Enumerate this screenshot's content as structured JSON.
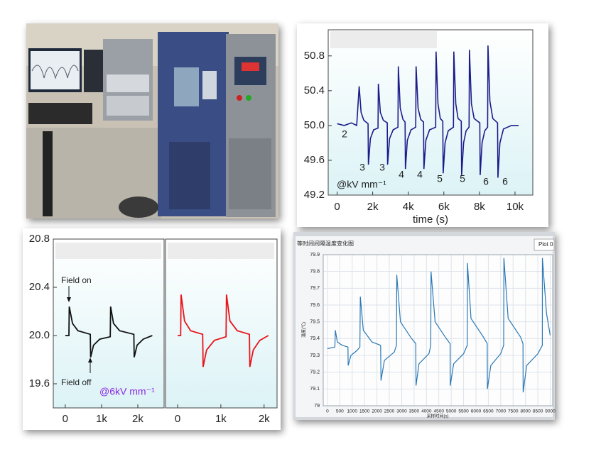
{
  "chart_data": [
    {
      "type": "line",
      "x_label": "time (s)",
      "x": [
        0,
        400,
        800,
        1100,
        1240,
        1350,
        1500,
        1740,
        1760,
        1870,
        2050,
        2300,
        2320,
        2430,
        2600,
        2820,
        2840,
        2950,
        3150,
        3420,
        3440,
        3550,
        3700,
        3820,
        3840,
        3950,
        4150,
        4420,
        4440,
        4550,
        4700,
        4860,
        4880,
        4990,
        5200,
        5540,
        5560,
        5670,
        5800,
        5940,
        5960,
        6070,
        6250,
        6540,
        6560,
        6670,
        6800,
        6980,
        7000,
        7110,
        7250,
        7420,
        7440,
        7550,
        7700,
        8020,
        8040,
        8150,
        8300,
        8460,
        8480,
        8590,
        8750,
        9020,
        9040,
        9150,
        9350,
        9800,
        10200
      ],
      "values": [
        50.02,
        50.0,
        50.03,
        50.0,
        50.45,
        50.15,
        50.06,
        50.02,
        49.55,
        49.85,
        49.95,
        49.97,
        50.48,
        50.15,
        50.06,
        50.03,
        49.55,
        49.85,
        49.95,
        49.98,
        50.68,
        50.2,
        50.07,
        50.04,
        49.5,
        49.83,
        49.95,
        49.98,
        50.68,
        50.2,
        50.07,
        50.04,
        49.5,
        49.83,
        49.95,
        49.98,
        50.85,
        50.25,
        50.08,
        50.05,
        49.45,
        49.8,
        49.94,
        49.98,
        50.85,
        50.25,
        50.08,
        50.05,
        49.43,
        49.8,
        49.94,
        49.98,
        50.87,
        50.25,
        50.08,
        50.03,
        49.43,
        49.8,
        49.94,
        49.98,
        50.92,
        50.28,
        50.08,
        50.03,
        49.4,
        49.8,
        49.96,
        50.0,
        50.0
      ],
      "color": "#1c1c8a",
      "xlim": [
        -500,
        11000
      ],
      "ylim": [
        49.2,
        51.1
      ],
      "xticks": [
        0,
        {
          "value": 2000,
          "label": "2k"
        },
        {
          "value": 4000,
          "label": "4k"
        },
        {
          "value": 6000,
          "label": "6k"
        },
        {
          "value": 8000,
          "label": "8k"
        },
        {
          "value": 10000,
          "label": "10k"
        }
      ],
      "yticks": [
        49.2,
        49.6,
        {
          "value": 50,
          "label": "50.0"
        },
        50.4,
        50.8
      ],
      "annotations": [
        "2",
        "3",
        "3",
        "4",
        "4",
        "5",
        "5",
        "6",
        "6",
        "@kV mm⁻¹"
      ]
    },
    {
      "type": "line",
      "x": [
        0,
        100,
        110,
        200,
        350,
        690,
        700,
        780,
        950,
        1240,
        1250,
        1330,
        1500,
        1890,
        1900,
        1980,
        2150,
        2400
      ],
      "values": [
        20.0,
        20.0,
        20.24,
        20.1,
        20.04,
        20.01,
        19.82,
        19.92,
        19.97,
        19.99,
        20.24,
        20.1,
        20.04,
        20.01,
        19.82,
        19.92,
        19.97,
        20.0
      ],
      "color": "#111111",
      "xlim": [
        -330,
        2725
      ],
      "ylim": [
        19.4,
        20.8
      ],
      "xticks": [
        0,
        {
          "value": 1000,
          "label": "1k"
        },
        {
          "value": 2000,
          "label": "2k"
        }
      ],
      "yticks": [
        19.6,
        {
          "value": 20,
          "label": "20.0"
        },
        20.4,
        20.8
      ],
      "annotations": [
        "Field on",
        "Field off",
        "@6kV mm⁻¹"
      ]
    },
    {
      "type": "line",
      "x": [
        0,
        70,
        80,
        160,
        300,
        580,
        590,
        670,
        850,
        1120,
        1130,
        1210,
        1380,
        1660,
        1670,
        1750,
        1900,
        2100
      ],
      "values": [
        20.0,
        20.0,
        20.34,
        20.12,
        20.04,
        20.01,
        19.74,
        19.88,
        19.96,
        19.99,
        20.34,
        20.12,
        20.04,
        20.01,
        19.74,
        19.88,
        19.96,
        20.0
      ],
      "color": "#e8141a",
      "xlim": [
        -280,
        2300
      ],
      "ylim": [
        19.4,
        20.8
      ],
      "xticks": [
        0,
        {
          "value": 1000,
          "label": "1k"
        },
        {
          "value": 2000,
          "label": "2k"
        }
      ]
    },
    {
      "type": "line",
      "title": "等时间间隔温度变化图",
      "panel_label": "Plot 0",
      "x_label": "采样时间(s)",
      "y_label": "温度(℃)",
      "x": [
        0,
        300,
        317,
        400,
        600,
        830,
        837,
        950,
        1200,
        1310,
        1327,
        1450,
        1800,
        2150,
        2164,
        2300,
        2700,
        2790,
        2800,
        2950,
        3400,
        3570,
        3578,
        3700,
        4100,
        4175,
        4183,
        4350,
        4800,
        4955,
        4962,
        5100,
        5500,
        5648,
        5655,
        5800,
        6300,
        6455,
        6463,
        6600,
        7000,
        7120,
        7127,
        7300,
        7800,
        7900,
        7905,
        8050,
        8500,
        8680,
        8685,
        8850,
        9000
      ],
      "values": [
        79.34,
        79.35,
        79.45,
        79.38,
        79.36,
        79.35,
        79.24,
        79.3,
        79.33,
        79.35,
        79.65,
        79.45,
        79.38,
        79.36,
        79.15,
        79.27,
        79.32,
        79.36,
        79.78,
        79.5,
        79.4,
        79.37,
        79.12,
        79.25,
        79.31,
        79.36,
        79.8,
        79.5,
        79.4,
        79.37,
        79.12,
        79.25,
        79.31,
        79.36,
        79.85,
        79.52,
        79.41,
        79.37,
        79.1,
        79.24,
        79.31,
        79.36,
        79.88,
        79.52,
        79.41,
        79.37,
        79.08,
        79.24,
        79.31,
        79.36,
        79.88,
        79.55,
        79.42
      ],
      "color": "#2a78b5",
      "xlim": [
        -170,
        9100
      ],
      "ylim": [
        79,
        79.9
      ],
      "xticks": [
        0,
        500,
        1000,
        1500,
        2000,
        2500,
        3000,
        3500,
        4000,
        4500,
        5000,
        5500,
        6000,
        6500,
        7000,
        7500,
        8000,
        8500,
        9000
      ],
      "yticks": [
        79,
        79.1,
        79.2,
        79.3,
        79.4,
        79.5,
        79.6,
        79.7,
        79.8,
        79.9
      ]
    }
  ]
}
